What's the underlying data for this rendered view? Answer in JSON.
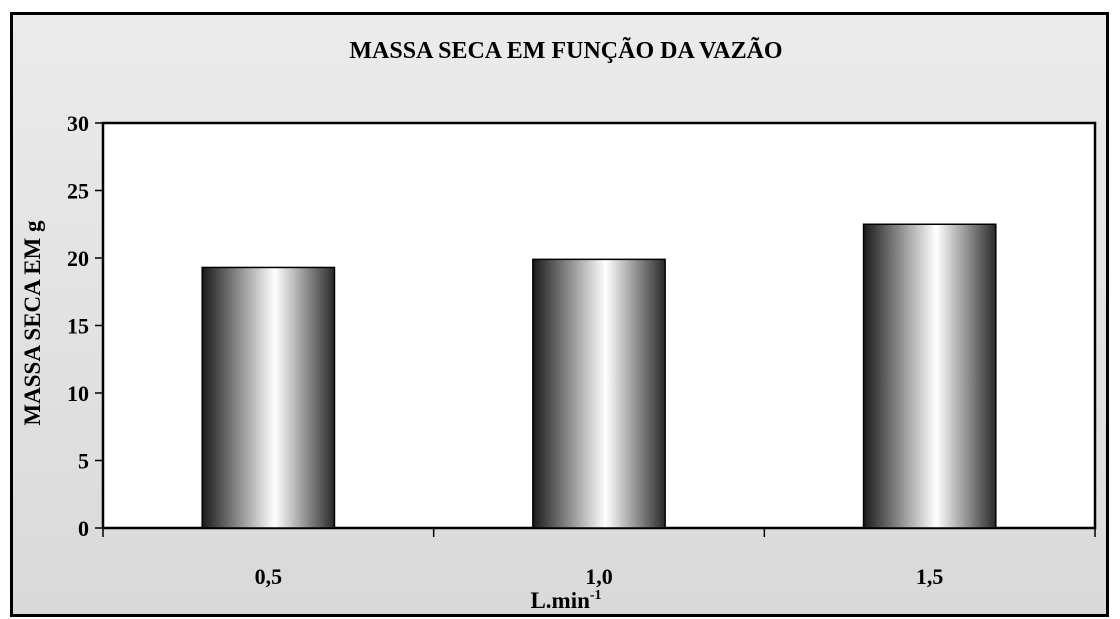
{
  "chart_data": {
    "type": "bar",
    "title": "MASSA SECA EM FUNÇÃO DA VAZÃO",
    "xlabel": "L.min",
    "xlabel_sup": "-1",
    "ylabel": "MASSA SECA EM g",
    "categories": [
      "0,5",
      "1,0",
      "1,5"
    ],
    "series": [
      {
        "values": [
          19.3,
          19.9,
          22.5
        ]
      }
    ],
    "ylim": [
      0,
      30
    ],
    "yticks": [
      0,
      5,
      10,
      15,
      20,
      25,
      30
    ],
    "grid": false,
    "legend": "none",
    "colors": {
      "bar_dark": "#1a1a1a",
      "bar_light": "#ffffff",
      "frame_bg": "#e3e3e3",
      "plot_bg": "#ffffff"
    }
  }
}
